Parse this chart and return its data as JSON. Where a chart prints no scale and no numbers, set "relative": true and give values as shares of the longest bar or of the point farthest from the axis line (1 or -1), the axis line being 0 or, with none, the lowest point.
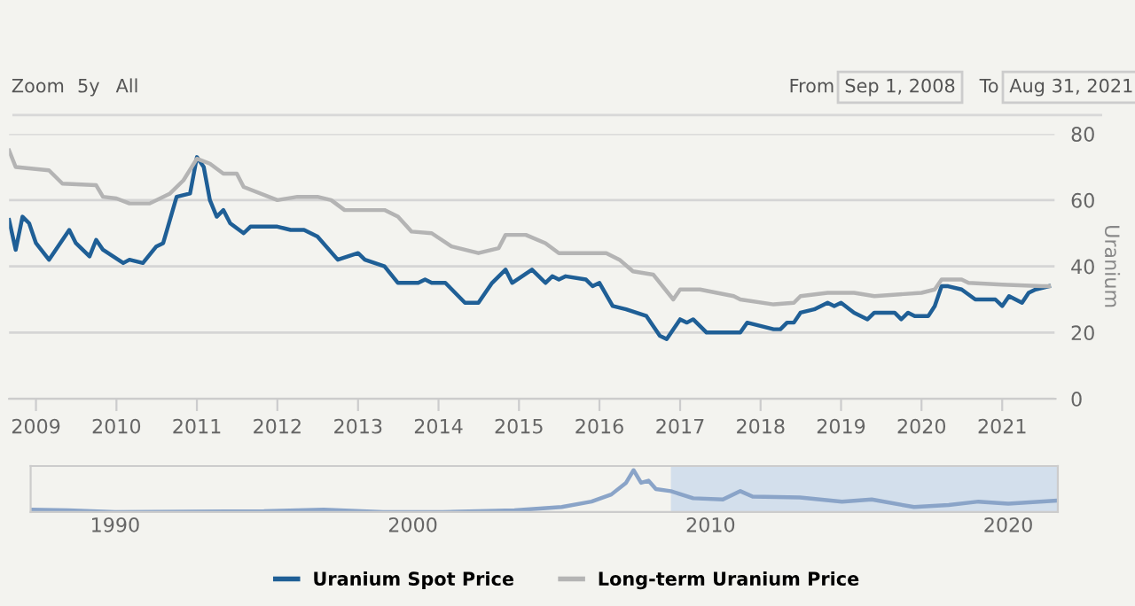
{
  "chart_data": [
    {
      "type": "line",
      "ylabel": "Uranium",
      "annotations": [
        "Zoom",
        "5y",
        "All",
        "From",
        "Sep 1, 2008",
        "To",
        "Aug 31, 2021"
      ],
      "xlim": [
        "2008-09-01",
        "2021-08-31"
      ],
      "xticks": [
        "2009",
        "2010",
        "2011",
        "2012",
        "2013",
        "2014",
        "2015",
        "2016",
        "2017",
        "2018",
        "2019",
        "2020",
        "2021"
      ],
      "ylim": [
        0,
        80
      ],
      "yticks": [
        0,
        20,
        40,
        60,
        80
      ],
      "grid": "y",
      "legend": "bottom",
      "marker": "none",
      "line_style": "solid",
      "series": [
        {
          "name": "Uranium Spot Price",
          "color": "#1f5f96",
          "x": [
            "2008-09",
            "2008-10",
            "2008-11",
            "2008-12",
            "2009-01",
            "2009-03",
            "2009-06",
            "2009-07",
            "2009-09",
            "2009-10",
            "2009-11",
            "2010-02",
            "2010-03",
            "2010-05",
            "2010-07",
            "2010-08",
            "2010-10",
            "2010-12",
            "2011-01",
            "2011-02",
            "2011-03",
            "2011-04",
            "2011-05",
            "2011-06",
            "2011-08",
            "2011-09",
            "2012-01",
            "2012-03",
            "2012-05",
            "2012-07",
            "2012-10",
            "2013-01",
            "2013-02",
            "2013-05",
            "2013-07",
            "2013-10",
            "2013-11",
            "2013-12",
            "2014-02",
            "2014-05",
            "2014-07",
            "2014-09",
            "2014-11",
            "2014-12",
            "2015-03",
            "2015-04",
            "2015-05",
            "2015-06",
            "2015-07",
            "2015-08",
            "2015-11",
            "2015-12",
            "2016-01",
            "2016-03",
            "2016-05",
            "2016-08",
            "2016-10",
            "2016-11",
            "2017-01",
            "2017-02",
            "2017-03",
            "2017-05",
            "2017-08",
            "2017-10",
            "2017-11",
            "2018-03",
            "2018-04",
            "2018-05",
            "2018-06",
            "2018-07",
            "2018-09",
            "2018-11",
            "2018-12",
            "2019-01",
            "2019-03",
            "2019-05",
            "2019-06",
            "2019-09",
            "2019-10",
            "2019-11",
            "2019-12",
            "2020-02",
            "2020-03",
            "2020-04",
            "2020-05",
            "2020-07",
            "2020-09",
            "2020-12",
            "2021-01",
            "2021-02",
            "2021-04",
            "2021-05",
            "2021-06",
            "2021-08"
          ],
          "values": [
            54,
            45,
            55,
            53,
            47,
            42,
            51,
            47,
            43,
            48,
            45,
            41,
            42,
            41,
            46,
            47,
            61,
            62,
            73,
            70,
            60,
            55,
            57,
            53,
            50,
            52,
            52,
            51,
            51,
            49,
            42,
            44,
            42,
            40,
            35,
            35,
            36,
            35,
            35,
            29,
            29,
            35,
            39,
            35,
            39,
            37,
            35,
            37,
            36,
            37,
            36,
            34,
            35,
            28,
            27,
            25,
            19,
            18,
            24,
            23,
            24,
            20,
            20,
            20,
            23,
            21,
            21,
            23,
            23,
            26,
            27,
            29,
            28,
            29,
            26,
            24,
            26,
            26,
            24,
            26,
            25,
            25,
            28,
            34,
            34,
            33,
            30,
            30,
            28,
            31,
            29,
            32,
            33,
            34
          ]
        },
        {
          "name": "Long-term Uranium Price",
          "color": "#b4b4b4",
          "x": [
            "2008-09",
            "2008-10",
            "2009-03",
            "2009-05",
            "2009-10",
            "2009-11",
            "2010-01",
            "2010-03",
            "2010-06",
            "2010-09",
            "2010-11",
            "2011-01",
            "2011-03",
            "2011-05",
            "2011-07",
            "2011-08",
            "2012-01",
            "2012-04",
            "2012-07",
            "2012-09",
            "2012-11",
            "2013-05",
            "2013-07",
            "2013-09",
            "2013-12",
            "2014-03",
            "2014-07",
            "2014-10",
            "2014-11",
            "2015-02",
            "2015-05",
            "2015-07",
            "2016-02",
            "2016-04",
            "2016-06",
            "2016-09",
            "2016-12",
            "2017-01",
            "2017-04",
            "2017-09",
            "2017-10",
            "2018-03",
            "2018-06",
            "2018-07",
            "2018-11",
            "2019-03",
            "2019-06",
            "2020-01",
            "2020-03",
            "2020-04",
            "2020-07",
            "2020-08",
            "2021-01",
            "2021-07",
            "2021-08"
          ],
          "values": [
            75,
            70,
            69,
            65,
            64.5,
            61,
            60.5,
            59,
            59,
            62,
            66,
            72.5,
            71,
            68,
            68,
            64,
            60,
            61,
            61,
            60,
            57,
            57,
            55,
            50.5,
            50,
            46,
            44,
            45.5,
            49.5,
            49.5,
            47,
            44,
            44,
            42,
            38.5,
            37.5,
            30,
            33,
            33,
            31,
            30,
            28.5,
            29,
            31,
            32,
            32,
            31,
            32,
            33,
            36,
            36,
            35,
            34.5,
            34,
            34
          ]
        }
      ]
    },
    {
      "type": "line",
      "relative": true,
      "tick_labels": "x",
      "xlim": [
        "1987-03-01",
        "2021-08-31"
      ],
      "xticks": [
        "1990",
        "2000",
        "2010",
        "2020"
      ],
      "marker": "none",
      "bands": [
        {
          "axis": "x",
          "from": "2008-09-01",
          "to": "2021-08-31",
          "color": "#d3dfec"
        }
      ],
      "series": [
        {
          "color": "#8aa4c8",
          "x": [
            "1987-03",
            "1988-06",
            "1990-01",
            "1995-01",
            "1997-01",
            "1999-01",
            "2001-01",
            "2003-06",
            "2005-01",
            "2006-01",
            "2006-09",
            "2007-03",
            "2007-06",
            "2007-09",
            "2007-12",
            "2008-03",
            "2008-09",
            "2009-06",
            "2010-06",
            "2011-01",
            "2011-06",
            "2013-01",
            "2014-06",
            "2015-06",
            "2016-11",
            "2018-01",
            "2019-01",
            "2020-01",
            "2021-08"
          ],
          "values": [
            0.06,
            0.04,
            0.0,
            0.02,
            0.06,
            0.0,
            0.0,
            0.04,
            0.12,
            0.25,
            0.42,
            0.7,
            1.0,
            0.7,
            0.75,
            0.55,
            0.5,
            0.33,
            0.3,
            0.5,
            0.37,
            0.35,
            0.25,
            0.3,
            0.12,
            0.17,
            0.25,
            0.2,
            0.27
          ]
        }
      ]
    }
  ]
}
